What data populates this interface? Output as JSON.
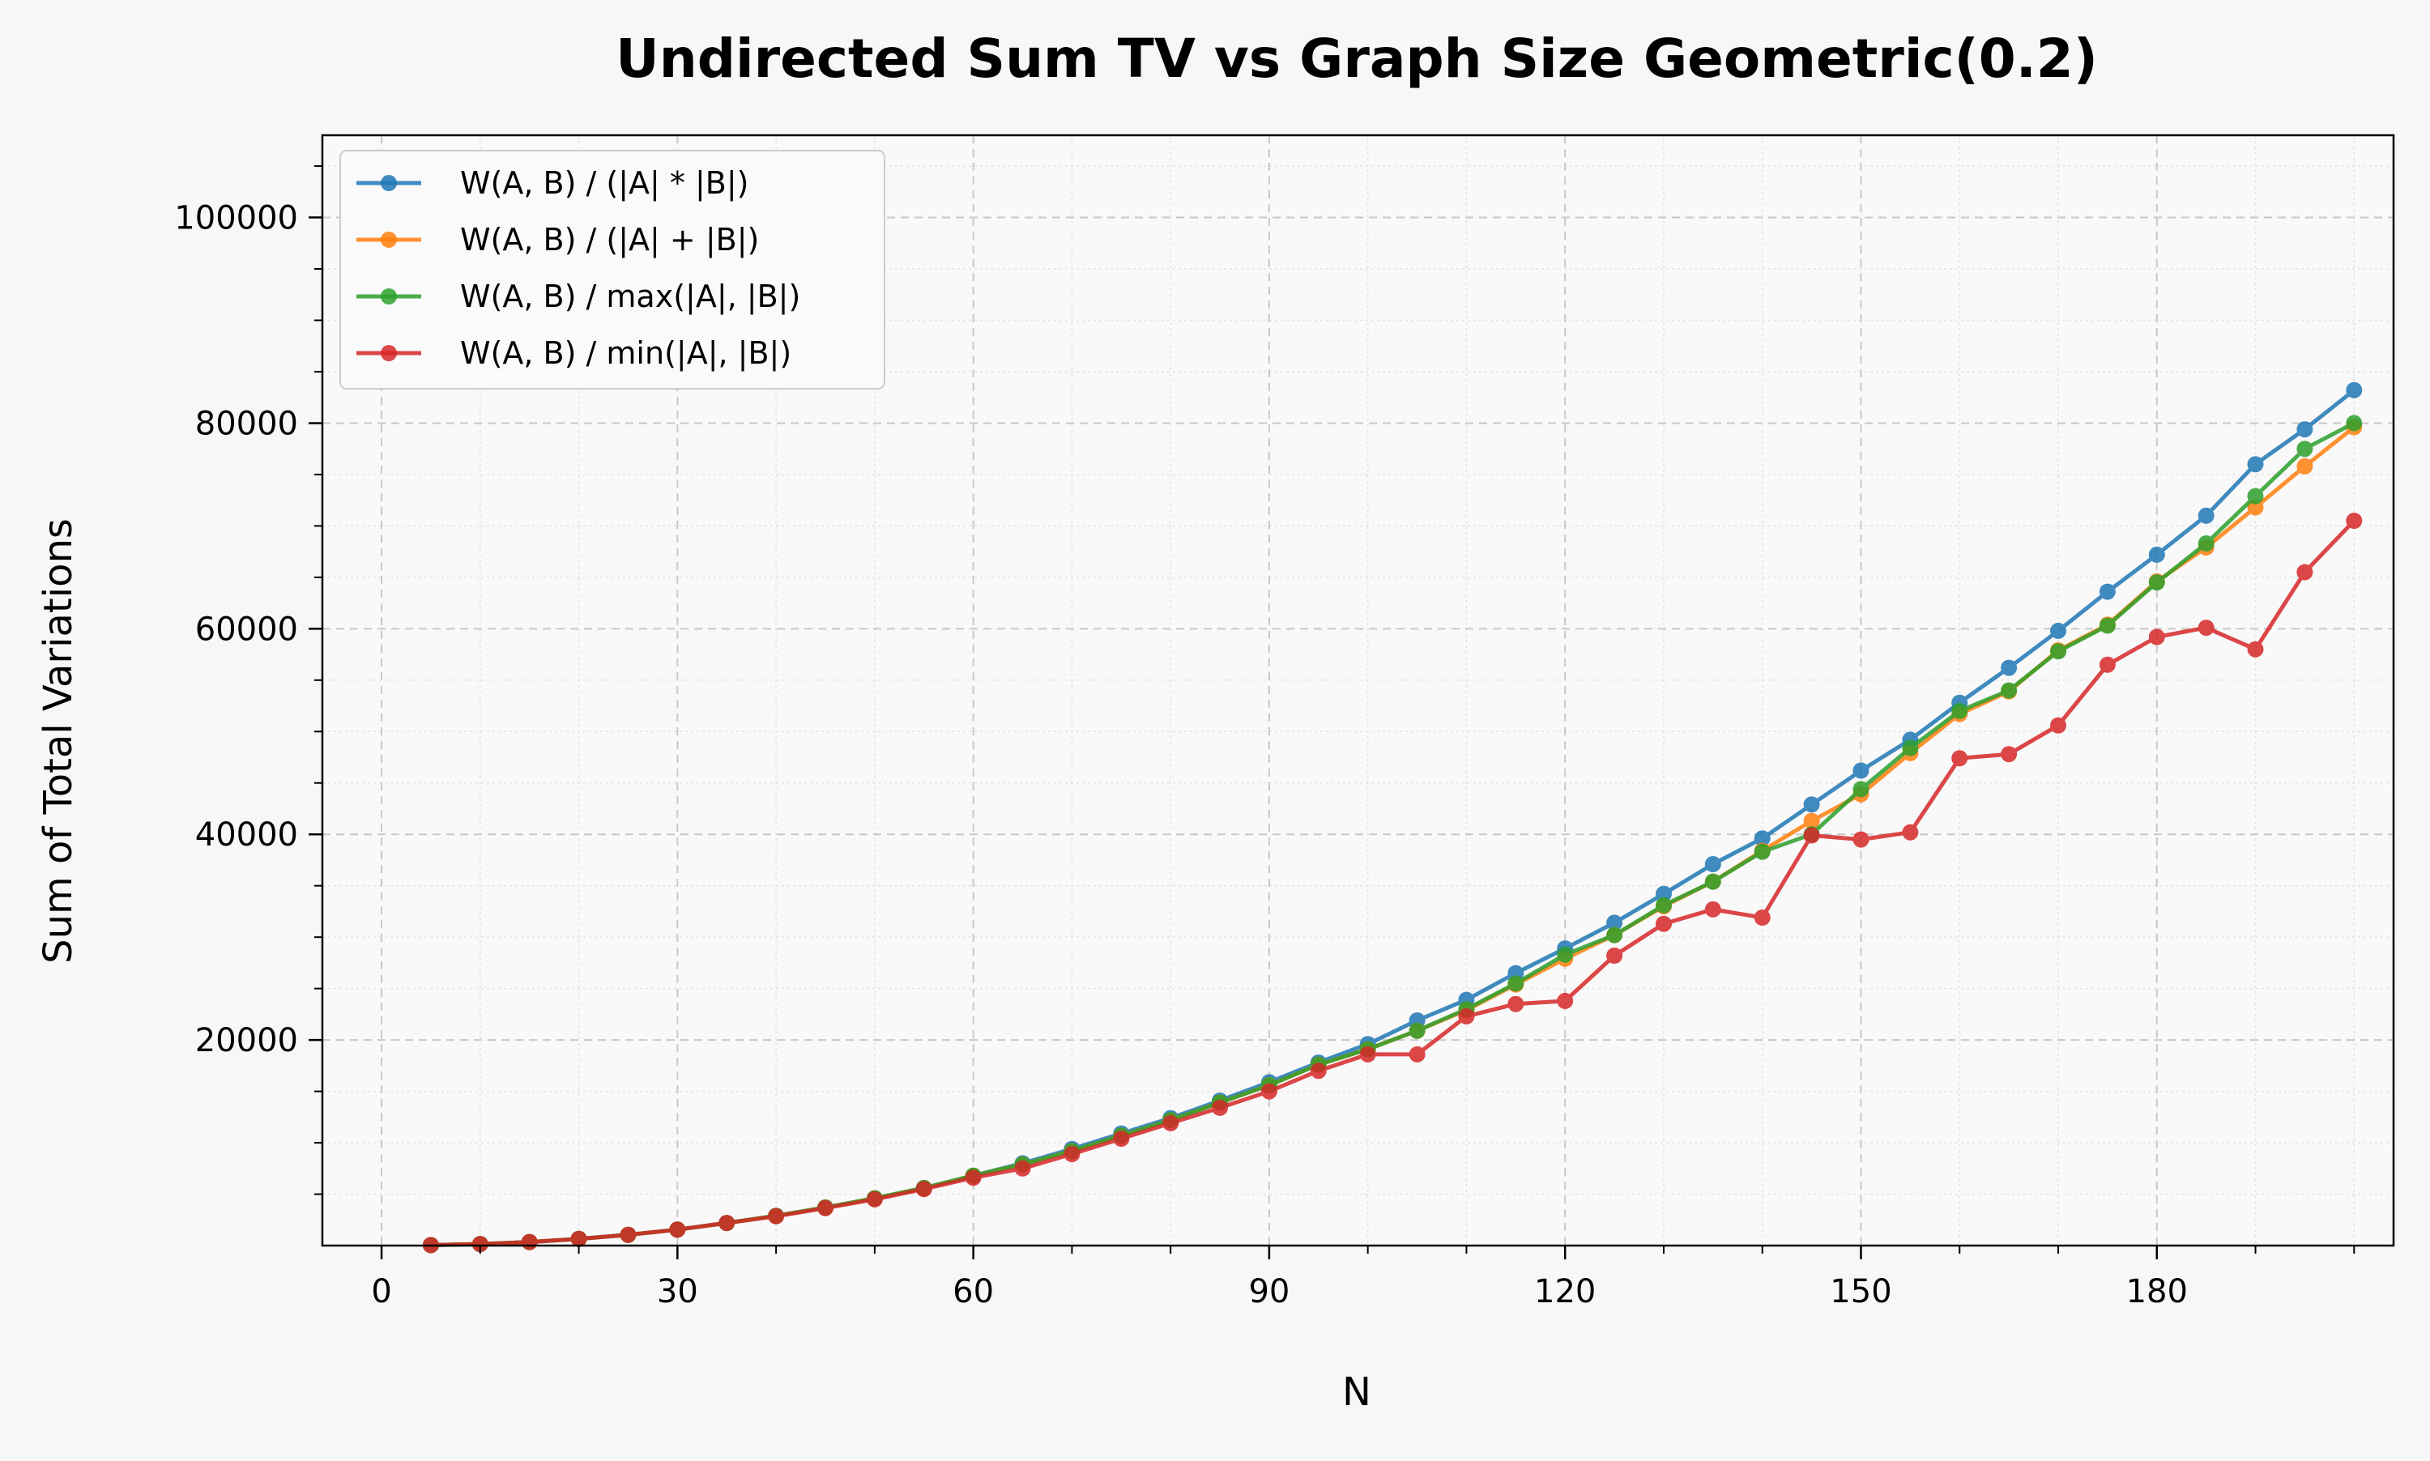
{
  "chart_data": {
    "type": "line",
    "title": "Undirected Sum TV vs Graph Size Geometric(0.2)",
    "xlabel": "N",
    "ylabel": "Sum of Total Variations",
    "xlim": [
      -6,
      204
    ],
    "ylim": [
      0,
      108000
    ],
    "xticks": [
      0,
      30,
      60,
      90,
      120,
      150,
      180
    ],
    "yticks": [
      20000,
      40000,
      60000,
      80000,
      100000
    ],
    "grid": true,
    "legend_position": "top-left",
    "x": [
      5,
      10,
      15,
      20,
      25,
      30,
      35,
      40,
      45,
      50,
      55,
      60,
      65,
      70,
      75,
      80,
      85,
      90,
      95,
      100,
      105,
      110,
      115,
      120,
      125,
      130,
      135,
      140,
      145,
      150,
      155,
      160,
      165,
      170,
      175,
      180,
      185,
      190,
      195,
      200
    ],
    "series": [
      {
        "name": "W(A, B) / (|A| * |B|)",
        "color": "#1f77b4",
        "values": [
          50,
          150,
          350,
          650,
          1050,
          1550,
          2200,
          2900,
          3700,
          4600,
          5600,
          6800,
          8000,
          9400,
          10900,
          12400,
          14100,
          15900,
          17800,
          19600,
          21900,
          23900,
          26500,
          28900,
          31400,
          34200,
          37100,
          39600,
          42900,
          46200,
          49200,
          52800,
          56200,
          59800,
          63600,
          67200,
          71000,
          76000,
          79400,
          83200
        ]
      },
      {
        "name": "W(A, B) / (|A| + |B|)",
        "color": "#ff7f0e",
        "values": [
          50,
          150,
          350,
          650,
          1050,
          1550,
          2200,
          2900,
          3700,
          4600,
          5600,
          6800,
          7900,
          9200,
          10700,
          12200,
          13900,
          15600,
          17600,
          19100,
          20900,
          22900,
          25400,
          27900,
          30200,
          33000,
          35400,
          38400,
          41300,
          43900,
          47900,
          51700,
          53900,
          57900,
          60400,
          64600,
          67900,
          71800,
          75800,
          79600
        ]
      },
      {
        "name": "W(A, B) / max(|A|, |B|)",
        "color": "#2ca02c",
        "values": [
          50,
          150,
          350,
          650,
          1050,
          1550,
          2200,
          2900,
          3700,
          4600,
          5600,
          6800,
          7900,
          9200,
          10700,
          12200,
          13900,
          15600,
          17600,
          19100,
          20900,
          23000,
          25500,
          28300,
          30200,
          33100,
          35400,
          38300,
          40000,
          44400,
          48400,
          52000,
          54000,
          57800,
          60300,
          64500,
          68300,
          72900,
          77500,
          80000
        ]
      },
      {
        "name": "W(A, B) / min(|A|, |B|)",
        "color": "#d62728",
        "values": [
          50,
          150,
          350,
          650,
          1050,
          1550,
          2200,
          2850,
          3650,
          4500,
          5500,
          6600,
          7500,
          8900,
          10400,
          11900,
          13400,
          15000,
          17000,
          18600,
          18600,
          22300,
          23500,
          23800,
          28200,
          31300,
          32700,
          31900,
          39900,
          39500,
          40200,
          47400,
          47800,
          50600,
          56500,
          59200,
          60100,
          58000,
          65500,
          70500
        ]
      }
    ]
  }
}
